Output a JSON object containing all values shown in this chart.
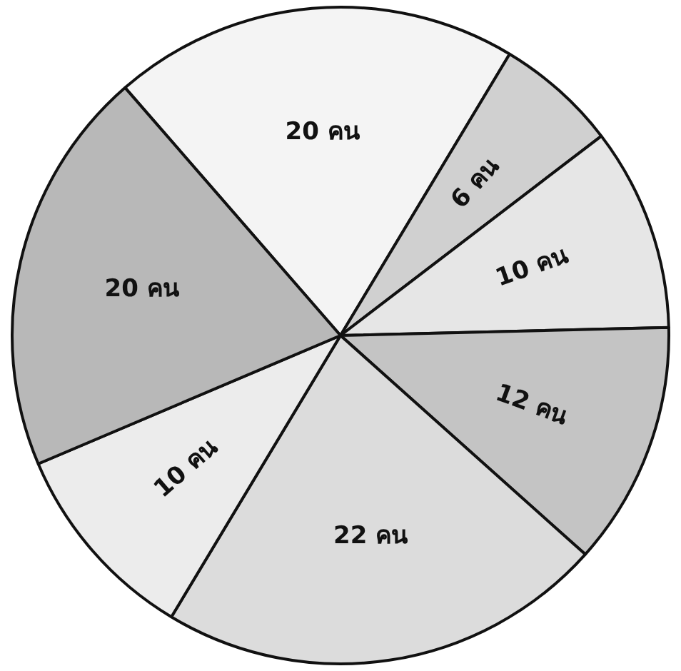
{
  "chart_data": {
    "type": "pie",
    "categories": [
      null,
      null,
      null,
      null,
      null,
      null,
      null
    ],
    "values": [
      20,
      6,
      10,
      12,
      22,
      10,
      20
    ],
    "colors": [
      "#f4f4f4",
      "#d0d0d0",
      "#e6e6e6",
      "#c4c4c4",
      "#dcdcdc",
      "#ececec",
      "#b8b8b8"
    ],
    "value_labels": [
      "20 คน",
      "6 คน",
      "10 คน",
      "12 คน",
      "22 คน",
      "10 คน",
      "20 คน"
    ],
    "legend": false
  }
}
